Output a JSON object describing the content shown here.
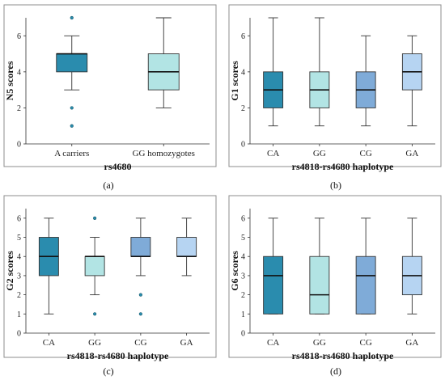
{
  "chart_data": [
    {
      "id": "a",
      "type": "box",
      "panel_label": "(a)",
      "xlabel": "rs4680",
      "ylabel": "N5 scores",
      "ylim": [
        0,
        7
      ],
      "yticks": [
        0,
        2,
        4,
        6
      ],
      "categories": [
        "A carriers",
        "GG homozygotes"
      ],
      "colors": [
        "#2a8cae",
        "#b2e4e4"
      ],
      "boxes": [
        {
          "min": 3,
          "q1": 4,
          "median": 5,
          "q3": 5,
          "max": 6,
          "outliers": [
            7,
            2,
            1
          ]
        },
        {
          "min": 2,
          "q1": 3,
          "median": 4,
          "q3": 5,
          "max": 7,
          "outliers": []
        }
      ]
    },
    {
      "id": "b",
      "type": "box",
      "panel_label": "(b)",
      "xlabel": "rs4818-rs4680 haplotype",
      "ylabel": "G1 scores",
      "ylim": [
        0,
        7
      ],
      "yticks": [
        0,
        2,
        4,
        6
      ],
      "categories": [
        "CA",
        "GG",
        "CG",
        "GA"
      ],
      "colors": [
        "#2a8cae",
        "#b2e4e4",
        "#7fabd8",
        "#b6d4f2"
      ],
      "boxes": [
        {
          "min": 1,
          "q1": 2,
          "median": 3,
          "q3": 4,
          "max": 7,
          "outliers": []
        },
        {
          "min": 1,
          "q1": 2,
          "median": 3,
          "q3": 4,
          "max": 7,
          "outliers": []
        },
        {
          "min": 1,
          "q1": 2,
          "median": 3,
          "q3": 4,
          "max": 6,
          "outliers": []
        },
        {
          "min": 1,
          "q1": 3,
          "median": 4,
          "q3": 5,
          "max": 6,
          "outliers": []
        }
      ]
    },
    {
      "id": "c",
      "type": "box",
      "panel_label": "(c)",
      "xlabel": "rs4818-rs4680 haplotype",
      "ylabel": "G2 scores",
      "ylim": [
        0,
        6.5
      ],
      "yticks": [
        0,
        1,
        2,
        3,
        4,
        5,
        6
      ],
      "categories": [
        "CA",
        "GG",
        "CG",
        "GA"
      ],
      "colors": [
        "#2a8cae",
        "#b2e4e4",
        "#7fabd8",
        "#b6d4f2"
      ],
      "boxes": [
        {
          "min": 1,
          "q1": 3,
          "median": 4,
          "q3": 5,
          "max": 6,
          "outliers": []
        },
        {
          "min": 2,
          "q1": 3,
          "median": 4,
          "q3": 4,
          "max": 5,
          "outliers": [
            6,
            1
          ]
        },
        {
          "min": 3,
          "q1": 4,
          "median": 4,
          "q3": 5,
          "max": 6,
          "outliers": [
            2,
            1
          ]
        },
        {
          "min": 3,
          "q1": 4,
          "median": 4,
          "q3": 5,
          "max": 6,
          "outliers": []
        }
      ]
    },
    {
      "id": "d",
      "type": "box",
      "panel_label": "(d)",
      "xlabel": "rs4818-rs4680 haplotype",
      "ylabel": "G6 scores",
      "ylim": [
        0,
        6.5
      ],
      "yticks": [
        0,
        1,
        2,
        3,
        4,
        5,
        6
      ],
      "categories": [
        "CA",
        "GG",
        "CG",
        "GA"
      ],
      "colors": [
        "#2a8cae",
        "#b2e4e4",
        "#7fabd8",
        "#b6d4f2"
      ],
      "boxes": [
        {
          "min": 1,
          "q1": 1,
          "median": 3,
          "q3": 4,
          "max": 6,
          "outliers": []
        },
        {
          "min": 1,
          "q1": 1,
          "median": 2,
          "q3": 4,
          "max": 6,
          "outliers": []
        },
        {
          "min": 1,
          "q1": 1,
          "median": 3,
          "q3": 4,
          "max": 6,
          "outliers": []
        },
        {
          "min": 1,
          "q1": 2,
          "median": 3,
          "q3": 4,
          "max": 6,
          "outliers": []
        }
      ]
    }
  ]
}
